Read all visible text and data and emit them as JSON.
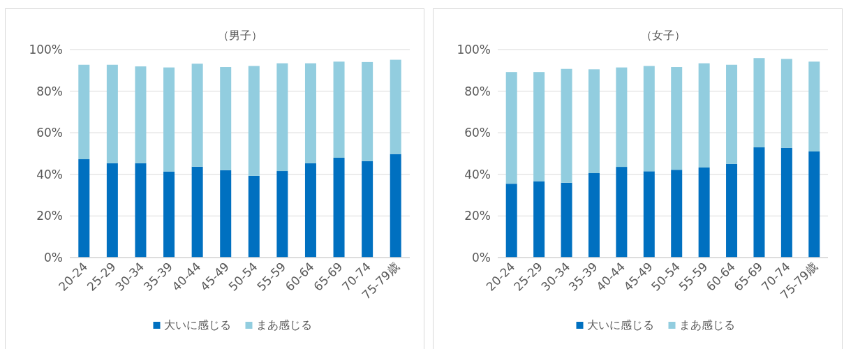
{
  "chart_data": [
    {
      "type": "bar",
      "title": "（男子）",
      "stacked": true,
      "legend": "bottom",
      "grid": "y",
      "categories": [
        "20-24",
        "25-29",
        "30-34",
        "35-39",
        "40-44",
        "45-49",
        "50-54",
        "55-59",
        "60-64",
        "65-69",
        "70-74",
        "75-79歳"
      ],
      "ylim": [
        0,
        100
      ],
      "yticks": [
        {
          "value": 0,
          "label": "0%"
        },
        {
          "value": 20,
          "label": "20%"
        },
        {
          "value": 40,
          "label": "40%"
        },
        {
          "value": 60,
          "label": "60%"
        },
        {
          "value": 80,
          "label": "80%"
        },
        {
          "value": 100,
          "label": "100%"
        }
      ],
      "series": [
        {
          "name": "大いに感じる",
          "color": "#0070c0",
          "values": [
            47.3,
            45.4,
            45.4,
            41.4,
            43.7,
            42.0,
            39.3,
            41.6,
            45.4,
            48.0,
            46.4,
            49.8
          ]
        },
        {
          "name": "まあ感じる",
          "color": "#92cddf",
          "values": [
            45.4,
            47.3,
            46.5,
            50.0,
            49.5,
            49.6,
            52.8,
            51.8,
            48.0,
            46.2,
            47.6,
            45.3
          ]
        }
      ]
    },
    {
      "type": "bar",
      "title": "（女子）",
      "stacked": true,
      "legend": "bottom",
      "grid": "y",
      "categories": [
        "20-24",
        "25-29",
        "30-34",
        "35-39",
        "40-44",
        "45-49",
        "50-54",
        "55-59",
        "60-64",
        "65-69",
        "70-74",
        "75-79歳"
      ],
      "ylim": [
        0,
        100
      ],
      "yticks": [
        {
          "value": 0,
          "label": "0%"
        },
        {
          "value": 20,
          "label": "20%"
        },
        {
          "value": 40,
          "label": "40%"
        },
        {
          "value": 60,
          "label": "60%"
        },
        {
          "value": 80,
          "label": "80%"
        },
        {
          "value": 100,
          "label": "100%"
        }
      ],
      "series": [
        {
          "name": "大いに感じる",
          "color": "#0070c0",
          "values": [
            35.5,
            36.7,
            36.0,
            40.6,
            43.6,
            41.5,
            42.2,
            43.3,
            45.0,
            53.0,
            52.8,
            51.0
          ]
        },
        {
          "name": "まあ感じる",
          "color": "#92cddf",
          "values": [
            53.7,
            52.5,
            54.7,
            49.9,
            47.8,
            50.6,
            49.4,
            50.1,
            47.7,
            42.9,
            42.7,
            43.2
          ]
        }
      ]
    }
  ]
}
